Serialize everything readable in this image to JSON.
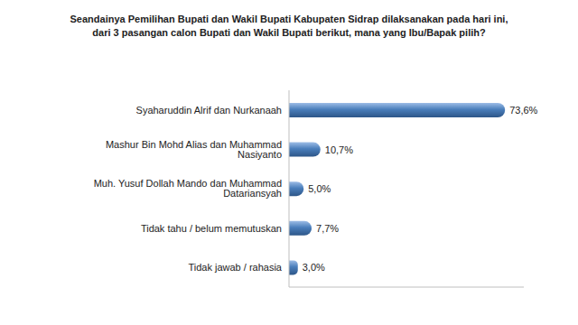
{
  "chart_data": {
    "type": "bar",
    "orientation": "horizontal",
    "title": "Seandainya Pemilihan Bupati dan Wakil Bupati Kabupaten Sidrap dilaksanakan pada hari ini, dari 3 pasangan calon Bupati dan Wakil Bupati berikut, mana yang Ibu/Bapak pilih?",
    "categories": [
      "Syaharuddin Alrif dan Nurkanaah",
      "Mashur Bin Mohd Alias dan Muhammad Nasiyanto",
      "Muh. Yusuf Dollah Mando dan Muhammad Datariansyah",
      "Tidak tahu / belum memutuskan",
      "Tidak jawab / rahasia"
    ],
    "values": [
      73.6,
      10.7,
      5.0,
      7.7,
      3.0
    ],
    "value_labels": [
      "73,6%",
      "10,7%",
      "5,0%",
      "7,7%",
      "3,0%"
    ],
    "color": "#4a7ebb",
    "xlim": [
      0,
      80
    ],
    "data_labels": true,
    "tick_labels": "y",
    "grid": false
  }
}
